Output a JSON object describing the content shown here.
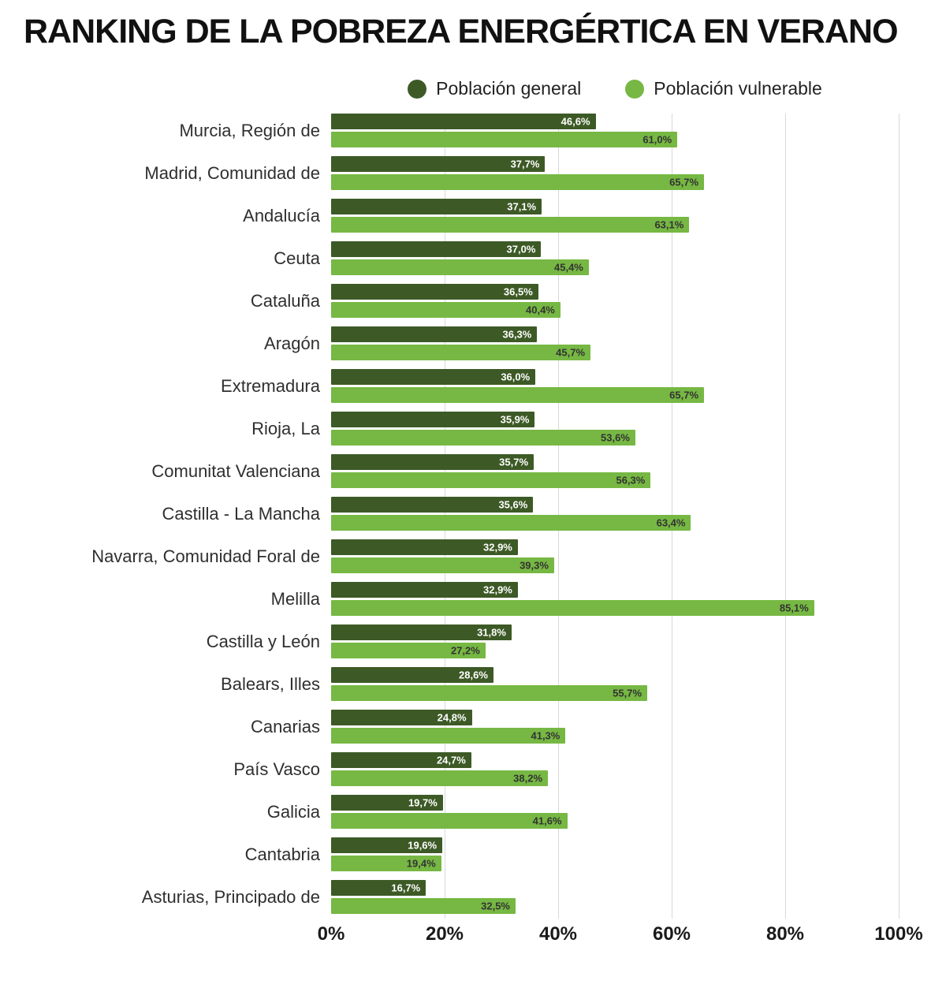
{
  "title": "RANKING DE LA POBREZA ENERGÉRTICA EN VERANO",
  "legend": [
    {
      "label": "Población general",
      "color": "#3d5a26"
    },
    {
      "label": "Población vulnerable",
      "color": "#76b843"
    }
  ],
  "chart_data": {
    "type": "bar",
    "orientation": "horizontal",
    "title": "RANKING DE LA POBREZA ENERGÉRTICA EN VERANO",
    "xlabel": "",
    "ylabel": "",
    "xlim": [
      0,
      100
    ],
    "x_ticks": [
      "0%",
      "20%",
      "40%",
      "60%",
      "80%",
      "100%"
    ],
    "grid": true,
    "legend_position": "top-center",
    "categories": [
      "Murcia, Región de",
      "Madrid, Comunidad de",
      "Andalucía",
      "Ceuta",
      "Cataluña",
      "Aragón",
      "Extremadura",
      "Rioja, La",
      "Comunitat Valenciana",
      "Castilla - La Mancha",
      "Navarra, Comunidad Foral de",
      "Melilla",
      "Castilla y León",
      "Balears, Illes",
      "Canarias",
      "País Vasco",
      "Galicia",
      "Cantabria",
      "Asturias, Principado de"
    ],
    "series": [
      {
        "name": "Población general",
        "color": "#3d5a26",
        "label_color": "#ffffff",
        "values": [
          46.6,
          37.7,
          37.1,
          37.0,
          36.5,
          36.3,
          36.0,
          35.9,
          35.7,
          35.6,
          32.9,
          32.9,
          31.8,
          28.6,
          24.8,
          24.7,
          19.7,
          19.6,
          16.7
        ]
      },
      {
        "name": "Población vulnerable",
        "color": "#76b843",
        "label_color": "#333333",
        "values": [
          61.0,
          65.7,
          63.1,
          45.4,
          40.4,
          45.7,
          65.7,
          53.6,
          56.3,
          63.4,
          39.3,
          85.1,
          27.2,
          55.7,
          41.3,
          38.2,
          41.6,
          19.4,
          32.5
        ]
      }
    ],
    "value_label_format": "one decimal, comma separator, percent suffix"
  }
}
